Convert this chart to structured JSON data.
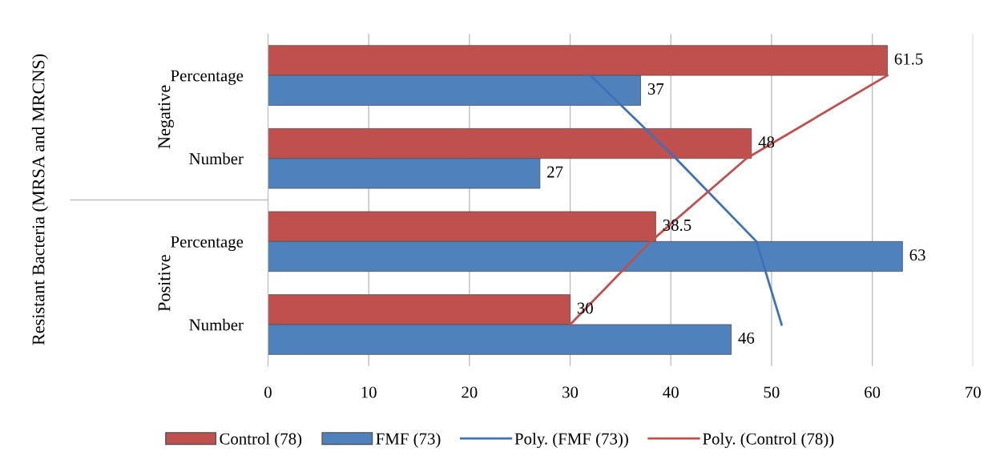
{
  "chart_data": {
    "type": "bar",
    "orientation": "horizontal",
    "categories": [
      "Percentage",
      "Number",
      "Percentage",
      "Number"
    ],
    "annotations": [
      "Resistant Bacteria (MRSA and MRCNS)",
      "Negative",
      "Positive"
    ],
    "series": [
      {
        "name": "Control (78)",
        "color": "#c0504d",
        "values": [
          61.5,
          48,
          38.5,
          30
        ],
        "value_labels": [
          "61.5",
          "48",
          "38.5",
          "30"
        ]
      },
      {
        "name": "FMF (73)",
        "color": "#4f81bd",
        "values": [
          37,
          27,
          63,
          46
        ],
        "value_labels": [
          "37",
          "27",
          "63",
          "46"
        ]
      },
      {
        "name": "Poly. (FMF (73))",
        "type": "line",
        "color": "#3e72b8",
        "values": [
          32,
          40.5,
          48.5,
          51
        ]
      },
      {
        "name": "Poly. (Control (78))",
        "type": "line",
        "color": "#c0504d",
        "values": [
          61.5,
          47.5,
          38,
          30
        ]
      }
    ],
    "xlim": [
      0,
      70
    ],
    "xticks": [
      0,
      10,
      20,
      30,
      40,
      50,
      60,
      70
    ],
    "grid": "x",
    "legend": "bottom"
  }
}
